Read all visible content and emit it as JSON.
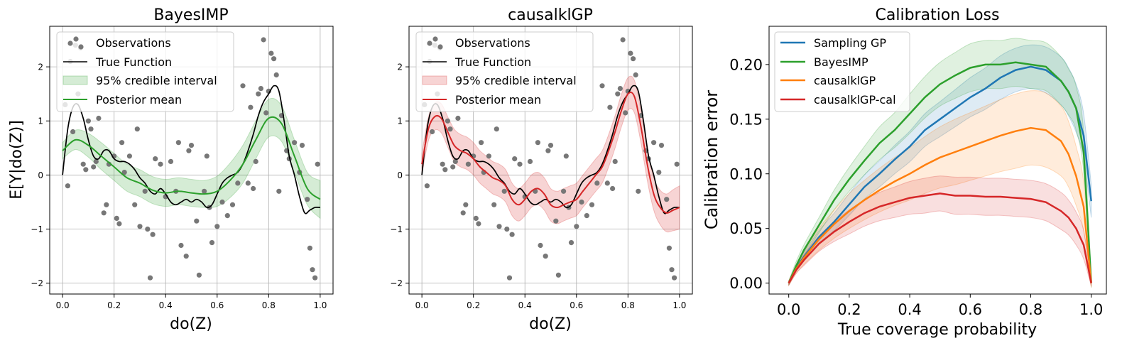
{
  "chart_data": [
    {
      "type": "scatter",
      "title": "BayesIMP",
      "xlabel": "do(Z)",
      "ylabel": "E[Y|do(Z)]",
      "xlim": [
        -0.05,
        1.05
      ],
      "ylim": [
        -2.2,
        2.75
      ],
      "xticks": [
        0.0,
        0.2,
        0.4,
        0.6,
        0.8,
        1.0
      ],
      "xtick_labels": [
        "0.0",
        "0.2",
        "0.4",
        "0.6",
        "0.8",
        "1.0"
      ],
      "yticks": [
        -2,
        -1,
        0,
        1,
        2
      ],
      "ytick_labels": [
        "−2",
        "−1",
        "0",
        "1",
        "2"
      ],
      "grid": true,
      "legend_position": "top-left",
      "legend": [
        "Observations",
        "True Function",
        "95% credible interval",
        "Posterior mean"
      ],
      "band_color": "#2ca02c",
      "mean_color": "#2ca02c",
      "observations": {
        "x": [
          0.01,
          0.02,
          0.03,
          0.04,
          0.05,
          0.06,
          0.07,
          0.08,
          0.09,
          0.1,
          0.11,
          0.12,
          0.13,
          0.14,
          0.16,
          0.17,
          0.18,
          0.2,
          0.21,
          0.22,
          0.23,
          0.24,
          0.26,
          0.28,
          0.29,
          0.3,
          0.32,
          0.33,
          0.34,
          0.35,
          0.36,
          0.38,
          0.4,
          0.42,
          0.44,
          0.45,
          0.46,
          0.48,
          0.49,
          0.5,
          0.52,
          0.53,
          0.55,
          0.56,
          0.57,
          0.58,
          0.6,
          0.62,
          0.64,
          0.66,
          0.68,
          0.7,
          0.72,
          0.73,
          0.74,
          0.75,
          0.76,
          0.77,
          0.78,
          0.79,
          0.8,
          0.81,
          0.82,
          0.83,
          0.84,
          0.85,
          0.87,
          0.88,
          0.9,
          0.92,
          0.93,
          0.95,
          0.96,
          0.97,
          0.98,
          0.99
        ],
        "y": [
          1.3,
          -0.2,
          2.1,
          0.8,
          2.4,
          1.5,
          2.35,
          0.2,
          0.1,
          1.0,
          0.85,
          0.15,
          0.25,
          1.05,
          -0.7,
          -0.55,
          0.2,
          0.35,
          -0.8,
          -0.9,
          0.6,
          0.05,
          0.35,
          -0.55,
          0.85,
          -0.95,
          -0.3,
          -1.0,
          -1.9,
          -1.1,
          0.3,
          0.2,
          -0.4,
          0.25,
          -0.3,
          0.6,
          -1.3,
          -1.5,
          0.45,
          0.55,
          -0.85,
          -1.85,
          -0.3,
          0.35,
          -0.6,
          -1.25,
          -0.95,
          -0.5,
          -0.75,
          -0.55,
          -0.15,
          1.65,
          -0.15,
          1.25,
          -0.25,
          0.25,
          1.5,
          1.6,
          2.5,
          1.15,
          1.55,
          2.25,
          2.15,
          1.85,
          -0.3,
          1.1,
          0.45,
          0.3,
          0.6,
          0.05,
          0.55,
          -0.45,
          -1.35,
          -1.75,
          -1.9,
          0.2
        ]
      },
      "true_function": {
        "x": [
          0.0,
          0.02,
          0.04,
          0.06,
          0.08,
          0.1,
          0.12,
          0.14,
          0.16,
          0.18,
          0.2,
          0.22,
          0.24,
          0.26,
          0.28,
          0.3,
          0.32,
          0.34,
          0.36,
          0.38,
          0.4,
          0.42,
          0.44,
          0.46,
          0.48,
          0.5,
          0.52,
          0.54,
          0.56,
          0.58,
          0.6,
          0.62,
          0.64,
          0.66,
          0.68,
          0.7,
          0.72,
          0.74,
          0.76,
          0.78,
          0.8,
          0.82,
          0.84,
          0.86,
          0.88,
          0.9,
          0.92,
          0.94,
          0.96,
          0.98,
          1.0
        ],
        "y": [
          0.0,
          0.85,
          1.25,
          1.3,
          1.05,
          0.65,
          0.35,
          0.3,
          0.45,
          0.45,
          0.3,
          0.25,
          0.25,
          0.2,
          0.1,
          -0.05,
          -0.15,
          -0.3,
          -0.35,
          -0.25,
          -0.35,
          -0.5,
          -0.55,
          -0.5,
          -0.45,
          -0.5,
          -0.45,
          -0.5,
          -0.6,
          -0.55,
          -0.35,
          -0.15,
          -0.05,
          0.0,
          0.05,
          0.2,
          0.45,
          0.75,
          1.1,
          1.35,
          1.5,
          1.65,
          1.55,
          1.0,
          0.35,
          0.0,
          -0.4,
          -0.7,
          -0.65,
          -0.6,
          -0.6
        ]
      },
      "posterior_mean": {
        "x": [
          0.0,
          0.05,
          0.1,
          0.15,
          0.2,
          0.25,
          0.3,
          0.35,
          0.4,
          0.45,
          0.5,
          0.55,
          0.6,
          0.65,
          0.7,
          0.75,
          0.8,
          0.85,
          0.9,
          0.95,
          1.0
        ],
        "y": [
          0.45,
          0.65,
          0.55,
          0.35,
          0.15,
          -0.05,
          -0.15,
          -0.28,
          -0.33,
          -0.3,
          -0.33,
          -0.35,
          -0.3,
          -0.1,
          0.2,
          0.65,
          1.05,
          0.95,
          0.35,
          -0.25,
          -0.45
        ]
      },
      "interval_half_width": [
        0.15,
        0.18,
        0.22,
        0.25,
        0.25,
        0.25,
        0.25,
        0.25,
        0.25,
        0.25,
        0.25,
        0.25,
        0.28,
        0.32,
        0.35,
        0.35,
        0.35,
        0.33,
        0.3,
        0.3,
        0.35
      ]
    },
    {
      "type": "scatter",
      "title": "causalklGP",
      "xlabel": "do(Z)",
      "xlim": [
        -0.05,
        1.05
      ],
      "ylim": [
        -2.2,
        2.75
      ],
      "xticks": [
        0.0,
        0.2,
        0.4,
        0.6,
        0.8,
        1.0
      ],
      "xtick_labels": [
        "0.0",
        "0.2",
        "0.4",
        "0.6",
        "0.8",
        "1.0"
      ],
      "yticks": [
        -2,
        -1,
        0,
        1,
        2
      ],
      "ytick_labels": [
        "−2",
        "−1",
        "0",
        "1",
        "2"
      ],
      "grid": true,
      "legend_position": "top-left",
      "legend": [
        "Observations",
        "True Function",
        "95% credible interval",
        "Posterior mean"
      ],
      "band_color": "#d62728",
      "mean_color": "#d62728",
      "posterior_mean": {
        "x": [
          0.0,
          0.025,
          0.05,
          0.075,
          0.1,
          0.125,
          0.15,
          0.175,
          0.2,
          0.225,
          0.25,
          0.275,
          0.3,
          0.325,
          0.35,
          0.375,
          0.4,
          0.425,
          0.45,
          0.475,
          0.5,
          0.525,
          0.55,
          0.575,
          0.6,
          0.625,
          0.65,
          0.675,
          0.7,
          0.725,
          0.75,
          0.775,
          0.8,
          0.825,
          0.85,
          0.875,
          0.9,
          0.925,
          0.95,
          0.975,
          1.0
        ],
        "y": [
          0.2,
          0.85,
          1.08,
          1.05,
          0.8,
          0.55,
          0.45,
          0.4,
          0.3,
          0.15,
          0.05,
          -0.05,
          -0.1,
          -0.2,
          -0.45,
          -0.55,
          -0.45,
          -0.3,
          -0.25,
          -0.35,
          -0.55,
          -0.6,
          -0.55,
          -0.5,
          -0.45,
          -0.3,
          -0.15,
          0.0,
          0.15,
          0.45,
          0.8,
          1.2,
          1.5,
          1.45,
          0.9,
          0.2,
          -0.35,
          -0.6,
          -0.7,
          -0.65,
          -0.6
        ]
      },
      "interval_half_width": [
        0.2,
        0.22,
        0.25,
        0.27,
        0.28,
        0.3,
        0.3,
        0.3,
        0.3,
        0.3,
        0.3,
        0.3,
        0.3,
        0.3,
        0.3,
        0.3,
        0.3,
        0.3,
        0.3,
        0.3,
        0.3,
        0.3,
        0.3,
        0.3,
        0.3,
        0.3,
        0.3,
        0.3,
        0.3,
        0.3,
        0.3,
        0.3,
        0.3,
        0.3,
        0.3,
        0.3,
        0.3,
        0.32,
        0.35,
        0.38,
        0.4
      ]
    },
    {
      "type": "line",
      "title": "Calibration Loss",
      "xlabel": "True coverage probability",
      "ylabel": "Calibration error",
      "xlim": [
        -0.065,
        1.05
      ],
      "ylim": [
        -0.01,
        0.235
      ],
      "xticks": [
        0.0,
        0.2,
        0.4,
        0.6,
        0.8,
        1.0
      ],
      "xtick_labels": [
        "0.0",
        "0.2",
        "0.4",
        "0.6",
        "0.8",
        "1.0"
      ],
      "yticks": [
        0.0,
        0.05,
        0.1,
        0.15,
        0.2
      ],
      "ytick_labels": [
        "0.00",
        "0.05",
        "0.10",
        "0.15",
        "0.20"
      ],
      "grid": false,
      "legend_position": "top-left",
      "x": [
        0.0,
        0.025,
        0.05,
        0.1,
        0.15,
        0.2,
        0.25,
        0.3,
        0.35,
        0.4,
        0.45,
        0.5,
        0.55,
        0.6,
        0.65,
        0.7,
        0.75,
        0.8,
        0.85,
        0.9,
        0.925,
        0.95,
        0.975,
        1.0
      ],
      "series": [
        {
          "name": "Sampling GP",
          "color": "#1f77b4",
          "values": [
            0.0,
            0.014,
            0.024,
            0.042,
            0.056,
            0.072,
            0.088,
            0.1,
            0.113,
            0.125,
            0.14,
            0.15,
            0.16,
            0.17,
            0.178,
            0.188,
            0.195,
            0.198,
            0.195,
            0.185,
            0.175,
            0.16,
            0.135,
            0.075
          ],
          "band": [
            0.002,
            0.003,
            0.004,
            0.006,
            0.008,
            0.01,
            0.011,
            0.012,
            0.013,
            0.014,
            0.015,
            0.016,
            0.017,
            0.018,
            0.019,
            0.02,
            0.02,
            0.02,
            0.021,
            0.022,
            0.022,
            0.022,
            0.02,
            0.015
          ]
        },
        {
          "name": "BayesIMP",
          "color": "#2ca02c",
          "values": [
            0.0,
            0.016,
            0.03,
            0.053,
            0.076,
            0.095,
            0.112,
            0.128,
            0.14,
            0.155,
            0.17,
            0.182,
            0.19,
            0.197,
            0.2,
            0.2,
            0.202,
            0.2,
            0.198,
            0.185,
            0.175,
            0.16,
            0.12,
            0.0
          ],
          "band": [
            0.002,
            0.004,
            0.005,
            0.007,
            0.009,
            0.011,
            0.013,
            0.015,
            0.016,
            0.018,
            0.019,
            0.02,
            0.021,
            0.022,
            0.022,
            0.022,
            0.022,
            0.022,
            0.022,
            0.022,
            0.021,
            0.02,
            0.018,
            0.004
          ]
        },
        {
          "name": "causalklGP",
          "color": "#ff7f0e",
          "values": [
            0.0,
            0.013,
            0.023,
            0.04,
            0.054,
            0.066,
            0.076,
            0.085,
            0.093,
            0.1,
            0.108,
            0.115,
            0.12,
            0.125,
            0.13,
            0.135,
            0.139,
            0.142,
            0.14,
            0.13,
            0.118,
            0.098,
            0.07,
            0.0
          ],
          "band": [
            0.002,
            0.004,
            0.006,
            0.01,
            0.013,
            0.016,
            0.018,
            0.02,
            0.022,
            0.024,
            0.026,
            0.028,
            0.03,
            0.031,
            0.032,
            0.033,
            0.034,
            0.034,
            0.034,
            0.032,
            0.03,
            0.027,
            0.022,
            0.004
          ]
        },
        {
          "name": "causalklGP-cal",
          "color": "#d62728",
          "values": [
            0.0,
            0.012,
            0.021,
            0.036,
            0.047,
            0.056,
            0.064,
            0.07,
            0.074,
            0.078,
            0.08,
            0.082,
            0.08,
            0.08,
            0.079,
            0.079,
            0.078,
            0.077,
            0.074,
            0.066,
            0.06,
            0.05,
            0.035,
            0.0
          ],
          "band": [
            0.002,
            0.003,
            0.005,
            0.007,
            0.009,
            0.011,
            0.012,
            0.013,
            0.014,
            0.015,
            0.016,
            0.016,
            0.017,
            0.017,
            0.017,
            0.017,
            0.017,
            0.017,
            0.017,
            0.017,
            0.016,
            0.015,
            0.013,
            0.003
          ]
        }
      ]
    }
  ]
}
